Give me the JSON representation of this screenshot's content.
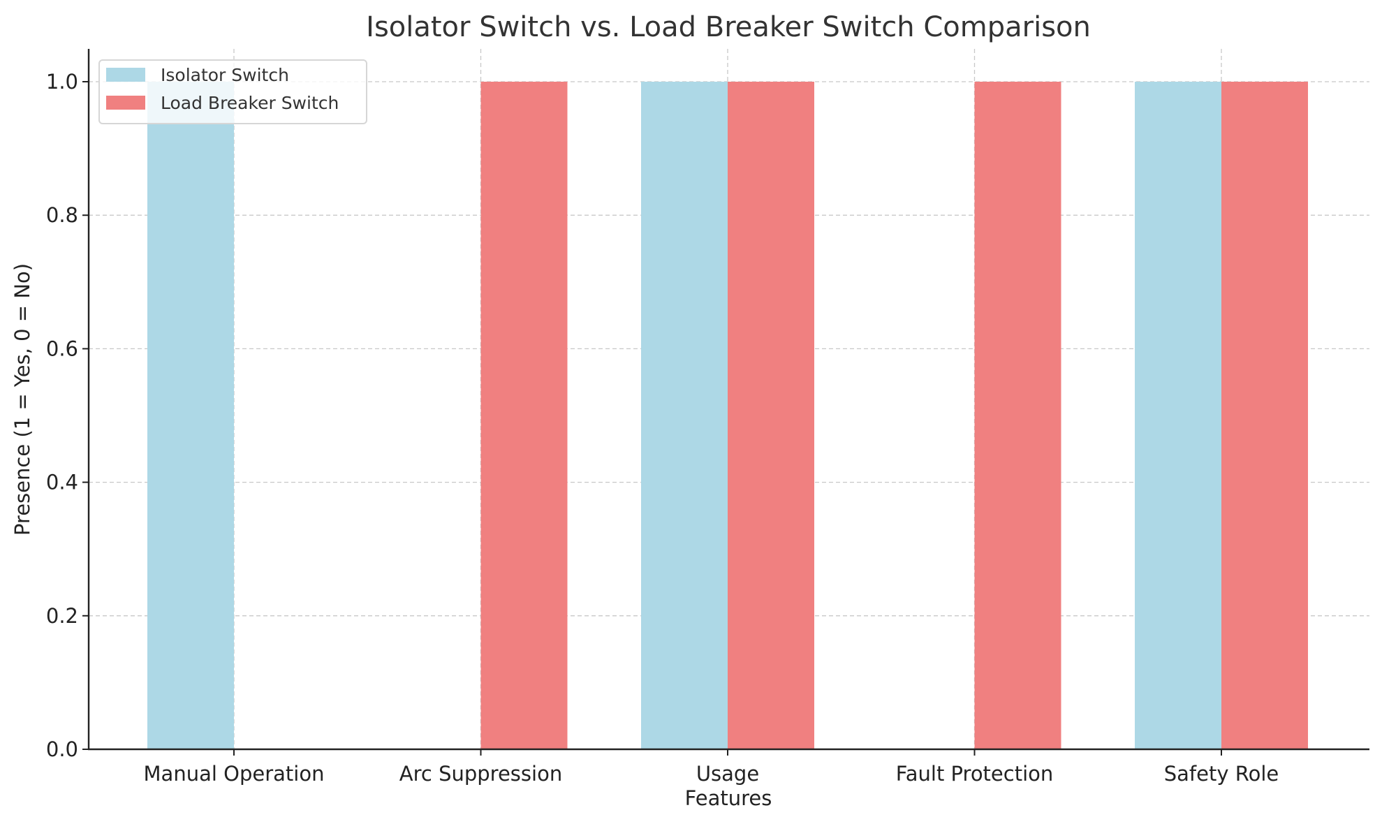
{
  "chart_data": {
    "type": "bar",
    "title": "Isolator Switch vs. Load Breaker Switch Comparison",
    "xlabel": "Features",
    "ylabel": "Presence (1 = Yes, 0 = No)",
    "categories": [
      "Manual Operation",
      "Arc Suppression",
      "Usage",
      "Fault Protection",
      "Safety Role"
    ],
    "series": [
      {
        "name": "Isolator Switch",
        "color": "#add8e6",
        "values": [
          1,
          0,
          1,
          0,
          1
        ]
      },
      {
        "name": "Load Breaker Switch",
        "color": "#f08080",
        "values": [
          0,
          1,
          1,
          1,
          1
        ]
      }
    ],
    "ylim": [
      0,
      1.05
    ],
    "yticks": [
      "0.0",
      "0.2",
      "0.4",
      "0.6",
      "0.8",
      "1.0"
    ],
    "grid": true,
    "legend_position": "upper left"
  }
}
